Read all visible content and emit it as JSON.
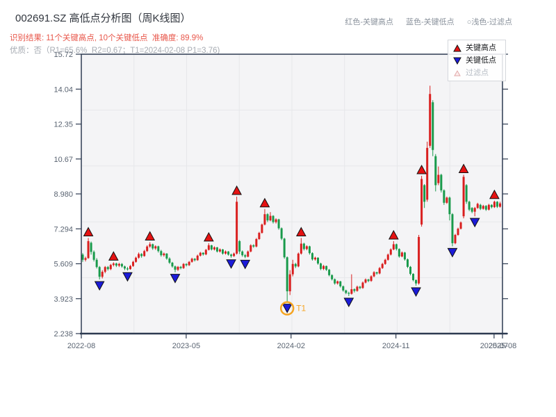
{
  "header": {
    "title": "002691.SZ 高低点分析图（周K线图）",
    "color_key": [
      {
        "text": "红色-关键高点"
      },
      {
        "text": "蓝色-关键低点"
      },
      {
        "text": "○浅色-过滤点"
      }
    ],
    "result_line": "识别结果: 11个关键高点, 10个关键低点  准确度: 89.9%",
    "quality_line": "优质：否（R1=65.6%  R2=0.67；T1=2024-02-08 P1=3.76)"
  },
  "legend": {
    "items": [
      {
        "icon": "up-triangle-icon",
        "label": "关键高点",
        "type": "key_high"
      },
      {
        "icon": "down-triangle-icon",
        "label": "关键低点",
        "type": "key_low"
      },
      {
        "icon": "filtered-triangle-icon",
        "label": "过滤点",
        "type": "filtered"
      }
    ]
  },
  "chart_data": {
    "type": "candlestick",
    "title": "002691.SZ 高低点分析图（周K线图）",
    "frequency": "weekly",
    "ylim": [
      2.238,
      15.72
    ],
    "y_ticks": [
      "15.72",
      "14.04",
      "12.35",
      "10.67",
      "8.980",
      "7.294",
      "5.609",
      "3.923",
      "2.238"
    ],
    "x_ticks": [
      {
        "label": "2022-08",
        "pos": 0.0
      },
      {
        "label": "2023-05",
        "pos": 0.249
      },
      {
        "label": "2024-02",
        "pos": 0.498
      },
      {
        "label": "2024-11",
        "pos": 0.747
      },
      {
        "label": "2025-07",
        "pos": 0.98
      },
      {
        "label": "2025-08",
        "pos": 1.0
      }
    ],
    "grid": {
      "v_divisions": 8,
      "h_divisions": 5
    },
    "candles_format": [
      "open",
      "high",
      "low",
      "close"
    ],
    "candles": [
      [
        6.05,
        6.12,
        5.7,
        5.8
      ],
      [
        5.8,
        5.95,
        5.72,
        5.88
      ],
      [
        5.88,
        6.85,
        5.85,
        6.7
      ],
      [
        6.62,
        6.68,
        6.05,
        6.18
      ],
      [
        6.18,
        6.25,
        5.72,
        5.8
      ],
      [
        5.8,
        5.88,
        5.38,
        5.45
      ],
      [
        5.45,
        5.5,
        4.85,
        4.98
      ],
      [
        4.98,
        5.3,
        4.9,
        5.22
      ],
      [
        5.22,
        5.5,
        5.15,
        5.45
      ],
      [
        5.45,
        5.5,
        5.28,
        5.35
      ],
      [
        5.35,
        5.6,
        5.3,
        5.55
      ],
      [
        5.55,
        5.68,
        5.48,
        5.62
      ],
      [
        5.62,
        5.66,
        5.45,
        5.52
      ],
      [
        5.52,
        5.65,
        5.45,
        5.6
      ],
      [
        5.6,
        5.64,
        5.42,
        5.48
      ],
      [
        5.48,
        5.52,
        5.3,
        5.38
      ],
      [
        5.38,
        5.45,
        5.28,
        5.35
      ],
      [
        5.35,
        5.55,
        5.32,
        5.5
      ],
      [
        5.5,
        5.75,
        5.46,
        5.7
      ],
      [
        5.7,
        5.95,
        5.66,
        5.9
      ],
      [
        5.9,
        6.15,
        5.85,
        6.08
      ],
      [
        6.08,
        6.12,
        5.9,
        5.98
      ],
      [
        5.98,
        6.28,
        5.95,
        6.22
      ],
      [
        6.22,
        6.5,
        6.18,
        6.44
      ],
      [
        6.44,
        6.65,
        6.38,
        6.55
      ],
      [
        6.55,
        6.58,
        6.28,
        6.35
      ],
      [
        6.35,
        6.5,
        6.28,
        6.45
      ],
      [
        6.45,
        6.48,
        6.15,
        6.22
      ],
      [
        6.22,
        6.28,
        5.95,
        6.02
      ],
      [
        6.02,
        6.15,
        5.95,
        6.1
      ],
      [
        6.1,
        6.12,
        5.8,
        5.86
      ],
      [
        5.86,
        5.92,
        5.6,
        5.66
      ],
      [
        5.66,
        5.7,
        5.42,
        5.48
      ],
      [
        5.48,
        5.52,
        5.2,
        5.32
      ],
      [
        5.32,
        5.5,
        5.26,
        5.46
      ],
      [
        5.46,
        5.5,
        5.34,
        5.4
      ],
      [
        5.4,
        5.64,
        5.36,
        5.6
      ],
      [
        5.6,
        5.63,
        5.48,
        5.54
      ],
      [
        5.54,
        5.74,
        5.5,
        5.7
      ],
      [
        5.7,
        5.9,
        5.66,
        5.85
      ],
      [
        5.85,
        5.88,
        5.72,
        5.78
      ],
      [
        5.78,
        6.05,
        5.75,
        6.0
      ],
      [
        6.0,
        6.18,
        5.96,
        6.14
      ],
      [
        6.14,
        6.16,
        6.0,
        6.06
      ],
      [
        6.06,
        6.32,
        6.02,
        6.28
      ],
      [
        6.28,
        6.6,
        6.25,
        6.5
      ],
      [
        6.5,
        6.52,
        6.25,
        6.3
      ],
      [
        6.3,
        6.45,
        6.25,
        6.4
      ],
      [
        6.4,
        6.42,
        6.15,
        6.2
      ],
      [
        6.2,
        6.35,
        6.15,
        6.3
      ],
      [
        6.3,
        6.32,
        6.05,
        6.1
      ],
      [
        6.1,
        6.25,
        6.05,
        6.2
      ],
      [
        6.2,
        6.22,
        6.0,
        6.05
      ],
      [
        6.05,
        6.1,
        5.9,
        5.98
      ],
      [
        5.98,
        6.15,
        5.94,
        6.1
      ],
      [
        6.1,
        8.85,
        6.05,
        8.6
      ],
      [
        6.7,
        6.75,
        6.08,
        6.2
      ],
      [
        6.2,
        6.25,
        5.95,
        6.02
      ],
      [
        6.02,
        6.08,
        5.88,
        5.95
      ],
      [
        5.95,
        6.25,
        5.92,
        6.2
      ],
      [
        6.2,
        6.55,
        6.16,
        6.5
      ],
      [
        6.5,
        6.55,
        6.38,
        6.44
      ],
      [
        6.44,
        6.85,
        6.4,
        6.8
      ],
      [
        6.8,
        7.15,
        6.76,
        7.1
      ],
      [
        7.1,
        7.55,
        7.06,
        7.5
      ],
      [
        7.5,
        8.25,
        7.46,
        8.0
      ],
      [
        8.0,
        8.05,
        7.62,
        7.7
      ],
      [
        7.7,
        8.1,
        7.66,
        7.92
      ],
      [
        7.92,
        7.95,
        7.55,
        7.62
      ],
      [
        7.62,
        7.8,
        7.55,
        7.75
      ],
      [
        7.75,
        7.78,
        7.25,
        7.32
      ],
      [
        7.32,
        7.36,
        6.75,
        6.82
      ],
      [
        6.82,
        6.86,
        5.85,
        5.92
      ],
      [
        5.92,
        5.96,
        3.76,
        4.28
      ],
      [
        4.28,
        5.3,
        4.1,
        5.1
      ],
      [
        5.1,
        5.8,
        5.0,
        5.6
      ],
      [
        5.6,
        5.65,
        5.4,
        5.48
      ],
      [
        5.48,
        6.15,
        5.44,
        6.1
      ],
      [
        6.1,
        6.85,
        6.05,
        6.58
      ],
      [
        6.58,
        6.62,
        6.25,
        6.32
      ],
      [
        6.32,
        6.5,
        6.26,
        6.45
      ],
      [
        6.45,
        6.48,
        6.05,
        6.12
      ],
      [
        6.12,
        6.16,
        5.76,
        5.82
      ],
      [
        5.82,
        5.95,
        5.76,
        5.9
      ],
      [
        5.9,
        5.92,
        5.56,
        5.62
      ],
      [
        5.62,
        5.66,
        5.3,
        5.36
      ],
      [
        5.36,
        5.55,
        5.3,
        5.5
      ],
      [
        5.5,
        5.52,
        5.26,
        5.32
      ],
      [
        5.32,
        5.36,
        5.0,
        5.06
      ],
      [
        5.06,
        5.1,
        4.8,
        4.86
      ],
      [
        4.86,
        4.9,
        4.6,
        4.66
      ],
      [
        4.66,
        4.8,
        4.6,
        4.76
      ],
      [
        4.76,
        4.78,
        4.46,
        4.52
      ],
      [
        4.52,
        4.56,
        4.26,
        4.32
      ],
      [
        4.32,
        4.36,
        4.14,
        4.2
      ],
      [
        4.2,
        4.26,
        4.05,
        4.16
      ],
      [
        4.16,
        5.1,
        4.12,
        4.38
      ],
      [
        4.38,
        4.42,
        4.22,
        4.3
      ],
      [
        4.3,
        4.55,
        4.26,
        4.5
      ],
      [
        4.5,
        4.54,
        4.38,
        4.44
      ],
      [
        4.44,
        4.75,
        4.4,
        4.7
      ],
      [
        4.7,
        4.9,
        4.66,
        4.85
      ],
      [
        4.85,
        4.88,
        4.72,
        4.78
      ],
      [
        4.78,
        5.05,
        4.74,
        5.0
      ],
      [
        5.0,
        5.25,
        4.96,
        5.2
      ],
      [
        5.2,
        5.22,
        5.08,
        5.14
      ],
      [
        5.14,
        5.45,
        5.1,
        5.4
      ],
      [
        5.4,
        5.65,
        5.36,
        5.6
      ],
      [
        5.6,
        5.85,
        5.56,
        5.8
      ],
      [
        5.8,
        6.1,
        5.76,
        6.05
      ],
      [
        6.05,
        6.35,
        6.01,
        6.3
      ],
      [
        6.3,
        6.7,
        6.26,
        6.55
      ],
      [
        6.55,
        6.58,
        6.25,
        6.32
      ],
      [
        6.32,
        6.35,
        5.9,
        5.96
      ],
      [
        5.96,
        6.2,
        5.92,
        6.15
      ],
      [
        6.15,
        6.18,
        5.76,
        5.82
      ],
      [
        5.82,
        5.86,
        5.4,
        5.46
      ],
      [
        5.46,
        5.5,
        5.05,
        5.12
      ],
      [
        5.12,
        5.15,
        4.76,
        4.82
      ],
      [
        4.82,
        4.86,
        4.55,
        4.66
      ],
      [
        4.66,
        7.0,
        4.6,
        6.9
      ],
      [
        7.5,
        9.85,
        7.4,
        9.7
      ],
      [
        9.4,
        9.45,
        8.3,
        8.6
      ],
      [
        8.7,
        11.5,
        8.6,
        11.2
      ],
      [
        11.3,
        14.2,
        11.2,
        13.8
      ],
      [
        13.4,
        13.5,
        10.8,
        11.1
      ],
      [
        10.8,
        10.9,
        9.1,
        9.4
      ],
      [
        9.5,
        10.3,
        9.4,
        9.9
      ],
      [
        9.9,
        9.95,
        9.05,
        9.15
      ],
      [
        9.15,
        9.2,
        8.45,
        8.55
      ],
      [
        8.55,
        8.85,
        8.5,
        8.8
      ],
      [
        8.8,
        8.85,
        7.7,
        8.0
      ],
      [
        8.0,
        8.05,
        6.45,
        6.6
      ],
      [
        6.6,
        7.05,
        6.55,
        7.0
      ],
      [
        7.0,
        7.35,
        6.96,
        7.3
      ],
      [
        7.3,
        7.65,
        7.26,
        7.6
      ],
      [
        7.9,
        9.9,
        7.8,
        9.8
      ],
      [
        9.4,
        9.45,
        8.5,
        8.6
      ],
      [
        8.6,
        8.65,
        8.15,
        8.22
      ],
      [
        8.3,
        8.34,
        8.05,
        8.12
      ],
      [
        8.12,
        8.35,
        7.9,
        8.3
      ],
      [
        8.3,
        8.55,
        8.26,
        8.5
      ],
      [
        8.45,
        8.5,
        8.2,
        8.26
      ],
      [
        8.26,
        8.45,
        8.22,
        8.4
      ],
      [
        8.4,
        8.44,
        8.16,
        8.22
      ],
      [
        8.22,
        8.5,
        8.18,
        8.45
      ],
      [
        8.45,
        8.48,
        8.28,
        8.34
      ],
      [
        8.34,
        8.65,
        8.3,
        8.6
      ],
      [
        8.6,
        8.63,
        8.3,
        8.36
      ],
      [
        8.36,
        8.6,
        8.32,
        8.52
      ]
    ],
    "key_highs": [
      {
        "i": 2,
        "price": 6.85
      },
      {
        "i": 11,
        "price": 5.68
      },
      {
        "i": 24,
        "price": 6.65
      },
      {
        "i": 45,
        "price": 6.6
      },
      {
        "i": 55,
        "price": 8.85
      },
      {
        "i": 65,
        "price": 8.25
      },
      {
        "i": 78,
        "price": 6.85
      },
      {
        "i": 111,
        "price": 6.7
      },
      {
        "i": 121,
        "price": 9.85
      },
      {
        "i": 136,
        "price": 9.9
      },
      {
        "i": 147,
        "price": 8.65
      }
    ],
    "key_lows": [
      {
        "i": 6,
        "price": 4.85
      },
      {
        "i": 16,
        "price": 5.28
      },
      {
        "i": 33,
        "price": 5.2
      },
      {
        "i": 53,
        "price": 5.9
      },
      {
        "i": 58,
        "price": 5.88
      },
      {
        "i": 73,
        "price": 3.76
      },
      {
        "i": 95,
        "price": 4.05
      },
      {
        "i": 119,
        "price": 4.55
      },
      {
        "i": 132,
        "price": 6.45
      },
      {
        "i": 140,
        "price": 7.9
      }
    ],
    "t1_marker": {
      "i": 73,
      "price": 3.76,
      "label": "T1"
    },
    "colors": {
      "up": "#d91e1e",
      "down": "#199a4b",
      "key_high": "#e51212",
      "key_low": "#1b1bd8",
      "filtered_fill": "#fbecec",
      "filtered_edge": "#e2a9a9",
      "t1": "#f5a421",
      "grid": "#e6e7ea",
      "plot_bg": "#f4f4f6",
      "spine": "#2d3a50",
      "tick_label": "#5a6472"
    }
  }
}
